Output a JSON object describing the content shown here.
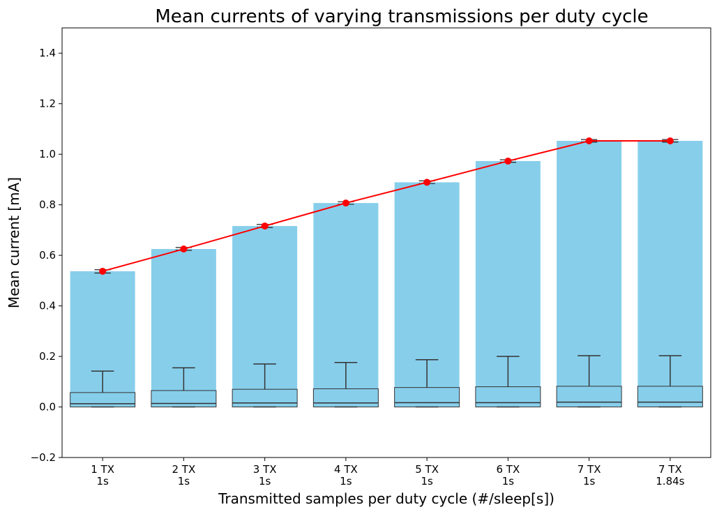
{
  "chart_data": {
    "type": "bar",
    "title": "Mean currents of varying transmissions per duty cycle",
    "xlabel": "Transmitted samples per duty cycle (#/sleep[s])",
    "ylabel": "Mean current [mA]",
    "ylim": [
      -0.2,
      1.5
    ],
    "yticks": [
      -0.2,
      0.0,
      0.2,
      0.4,
      0.6,
      0.8,
      1.0,
      1.2,
      1.4
    ],
    "ytick_labels": [
      "−0.2",
      "0.0",
      "0.2",
      "0.4",
      "0.6",
      "0.8",
      "1.0",
      "1.2",
      "1.4"
    ],
    "categories": [
      [
        "1 TX",
        "1s"
      ],
      [
        "2 TX",
        "1s"
      ],
      [
        "3 TX",
        "1s"
      ],
      [
        "4 TX",
        "1s"
      ],
      [
        "5 TX",
        "1s"
      ],
      [
        "6 TX",
        "1s"
      ],
      [
        "7 TX",
        "1s"
      ],
      [
        "7 TX",
        "1.84s"
      ]
    ],
    "bars": {
      "color": "#87ceeb",
      "values": [
        0.537,
        0.625,
        0.716,
        0.807,
        0.889,
        0.973,
        1.053,
        1.053
      ],
      "error_low": [
        0.53,
        0.62,
        0.71,
        0.802,
        0.884,
        0.968,
        1.048,
        1.048
      ],
      "error_high": [
        0.543,
        0.631,
        0.722,
        0.812,
        0.895,
        0.978,
        1.058,
        1.058
      ]
    },
    "mean_line": {
      "color": "#ff0000",
      "values": [
        0.537,
        0.625,
        0.716,
        0.807,
        0.889,
        0.973,
        1.053,
        1.053
      ]
    },
    "boxplots": {
      "q1": [
        0.0,
        0.0,
        0.0,
        0.0,
        0.0,
        0.0,
        0.0,
        0.0
      ],
      "median": [
        0.013,
        0.014,
        0.016,
        0.016,
        0.017,
        0.017,
        0.019,
        0.019
      ],
      "q3": [
        0.057,
        0.065,
        0.07,
        0.072,
        0.077,
        0.08,
        0.082,
        0.082
      ],
      "whisker_low": [
        0.0,
        0.0,
        0.0,
        0.0,
        0.0,
        0.0,
        0.0,
        0.0
      ],
      "whisker_high": [
        0.142,
        0.155,
        0.17,
        0.176,
        0.187,
        0.2,
        0.203,
        0.203
      ]
    },
    "grid": false,
    "legend": "none"
  }
}
